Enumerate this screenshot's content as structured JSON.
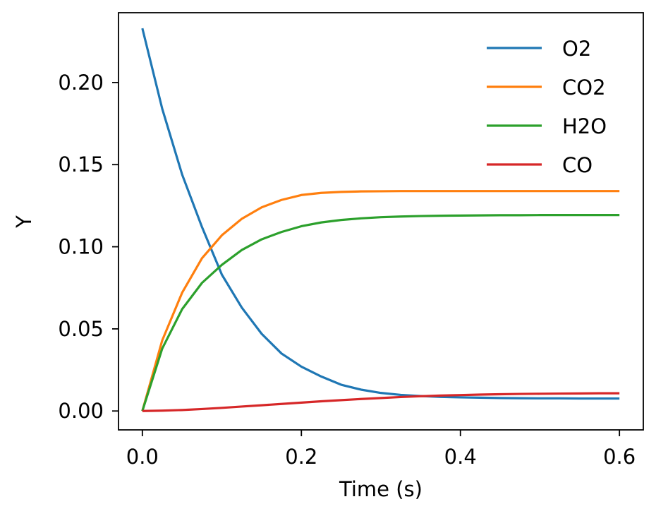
{
  "chart_data": {
    "type": "line",
    "title": "",
    "xlabel": "Time (s)",
    "ylabel": "Y",
    "xlim": [
      -0.03,
      0.63
    ],
    "ylim": [
      -0.0115,
      0.2425
    ],
    "xticks": [
      0.0,
      0.2,
      0.4,
      0.6
    ],
    "xtick_labels": [
      "0.0",
      "0.2",
      "0.4",
      "0.6"
    ],
    "yticks": [
      0.0,
      0.05,
      0.1,
      0.15,
      0.2
    ],
    "ytick_labels": [
      "0.00",
      "0.05",
      "0.10",
      "0.15",
      "0.20"
    ],
    "grid": false,
    "legend_position": "top-right",
    "x": [
      0.0,
      0.025,
      0.05,
      0.075,
      0.1,
      0.125,
      0.15,
      0.175,
      0.2,
      0.225,
      0.25,
      0.275,
      0.3,
      0.325,
      0.35,
      0.375,
      0.4,
      0.425,
      0.45,
      0.475,
      0.5,
      0.525,
      0.55,
      0.575,
      0.6
    ],
    "series": [
      {
        "name": "O2",
        "color": "#1f77b4",
        "values": [
          0.233,
          0.184,
          0.144,
          0.112,
          0.083,
          0.063,
          0.047,
          0.035,
          0.027,
          0.021,
          0.016,
          0.013,
          0.011,
          0.0098,
          0.0091,
          0.0086,
          0.0083,
          0.0081,
          0.0079,
          0.0078,
          0.0077,
          0.0077,
          0.0076,
          0.0076,
          0.0076
        ]
      },
      {
        "name": "CO2",
        "color": "#ff7f0e",
        "values": [
          0.0,
          0.043,
          0.072,
          0.093,
          0.107,
          0.117,
          0.124,
          0.1285,
          0.1315,
          0.1328,
          0.1334,
          0.1337,
          0.1338,
          0.1339,
          0.1339,
          0.1339,
          0.1339,
          0.1339,
          0.1339,
          0.1339,
          0.1339,
          0.1339,
          0.1339,
          0.1339,
          0.1339
        ]
      },
      {
        "name": "H2O",
        "color": "#2ca02c",
        "values": [
          0.0,
          0.038,
          0.062,
          0.078,
          0.089,
          0.098,
          0.1045,
          0.109,
          0.1125,
          0.1148,
          0.1163,
          0.1173,
          0.118,
          0.1184,
          0.1187,
          0.1189,
          0.119,
          0.1191,
          0.1192,
          0.1192,
          0.1193,
          0.1193,
          0.1193,
          0.1193,
          0.1193
        ]
      },
      {
        "name": "CO",
        "color": "#d62728",
        "values": [
          0.0,
          0.0002,
          0.0006,
          0.0012,
          0.0019,
          0.0027,
          0.0035,
          0.0043,
          0.0051,
          0.0059,
          0.0066,
          0.0073,
          0.0079,
          0.0085,
          0.009,
          0.0094,
          0.0097,
          0.01,
          0.0102,
          0.0104,
          0.0105,
          0.0106,
          0.0107,
          0.0108,
          0.0108
        ]
      }
    ]
  }
}
